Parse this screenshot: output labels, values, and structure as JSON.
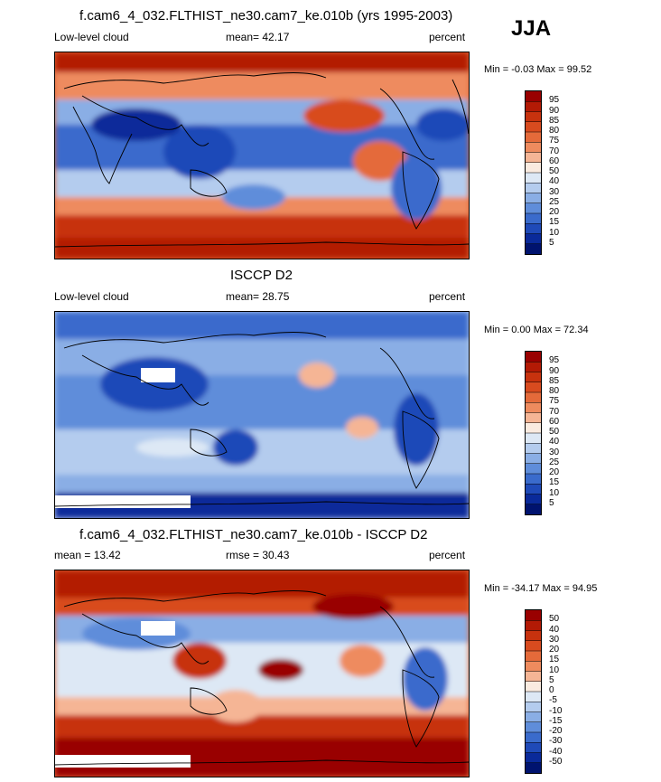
{
  "season": "JJA",
  "panels": [
    {
      "title": "f.cam6_4_032.FLTHIST_ne30.cam7_ke.010b (yrs 1995-2003)",
      "left_label": "Low-level cloud",
      "mean_label": "mean=",
      "mean_value": "42.17",
      "right_label": "percent",
      "min_max": "Min =  -0.03 Max =  99.52",
      "colorbar": [
        "95",
        "90",
        "85",
        "80",
        "75",
        "70",
        "60",
        "50",
        "40",
        "30",
        "25",
        "20",
        "15",
        "10",
        "5"
      ],
      "colors": [
        "#990000",
        "#b31a05",
        "#c7320e",
        "#d84b1f",
        "#e46a3a",
        "#ee8b5e",
        "#f5b595",
        "#faebe0",
        "#dde8f5",
        "#b4ccee",
        "#8aaee5",
        "#5f8dda",
        "#3a6bcc",
        "#1f4ab8",
        "#0a2a9a",
        "#00136f"
      ]
    },
    {
      "title": "ISCCP D2",
      "left_label": "Low-level cloud",
      "mean_label": "mean=",
      "mean_value": "28.75",
      "right_label": "percent",
      "min_max": "Min =   0.00 Max =  72.34",
      "colorbar": [
        "95",
        "90",
        "85",
        "80",
        "75",
        "70",
        "60",
        "50",
        "40",
        "30",
        "25",
        "20",
        "15",
        "10",
        "5"
      ],
      "colors": [
        "#990000",
        "#b31a05",
        "#c7320e",
        "#d84b1f",
        "#e46a3a",
        "#ee8b5e",
        "#f5b595",
        "#faebe0",
        "#dde8f5",
        "#b4ccee",
        "#8aaee5",
        "#5f8dda",
        "#3a6bcc",
        "#1f4ab8",
        "#0a2a9a",
        "#00136f"
      ]
    },
    {
      "title": "f.cam6_4_032.FLTHIST_ne30.cam7_ke.010b - ISCCP D2",
      "left_label": "mean =",
      "mean_label": "rmse =",
      "mean_value": "30.43",
      "left_value": "13.42",
      "right_label": "percent",
      "min_max": "Min = -34.17 Max =  94.95",
      "colorbar": [
        "50",
        "40",
        "30",
        "20",
        "15",
        "10",
        "5",
        "0",
        "-5",
        "-10",
        "-15",
        "-20",
        "-30",
        "-40",
        "-50"
      ],
      "colors": [
        "#990000",
        "#b31a05",
        "#c7320e",
        "#d84b1f",
        "#e46a3a",
        "#ee8b5e",
        "#f5b595",
        "#faebe0",
        "#dde8f5",
        "#b4ccee",
        "#8aaee5",
        "#5f8dda",
        "#3a6bcc",
        "#1f4ab8",
        "#0a2a9a",
        "#00136f"
      ]
    }
  ],
  "chart_data": [
    {
      "type": "heatmap",
      "title": "f.cam6_4_032.FLTHIST_ne30.cam7_ke.010b (yrs 1995-2003)",
      "variable": "Low-level cloud",
      "units": "percent",
      "mean": 42.17,
      "min": -0.03,
      "max": 99.52,
      "contour_levels": [
        5,
        10,
        15,
        20,
        25,
        30,
        40,
        50,
        60,
        70,
        75,
        80,
        85,
        90,
        95
      ]
    },
    {
      "type": "heatmap",
      "title": "ISCCP D2",
      "variable": "Low-level cloud",
      "units": "percent",
      "mean": 28.75,
      "min": 0.0,
      "max": 72.34,
      "contour_levels": [
        5,
        10,
        15,
        20,
        25,
        30,
        40,
        50,
        60,
        70,
        75,
        80,
        85,
        90,
        95
      ]
    },
    {
      "type": "heatmap",
      "title": "f.cam6_4_032.FLTHIST_ne30.cam7_ke.010b - ISCCP D2",
      "units": "percent",
      "mean": 13.42,
      "rmse": 30.43,
      "min": -34.17,
      "max": 94.95,
      "contour_levels": [
        -50,
        -40,
        -30,
        -20,
        -15,
        -10,
        -5,
        0,
        5,
        10,
        15,
        20,
        30,
        40,
        50
      ]
    }
  ]
}
